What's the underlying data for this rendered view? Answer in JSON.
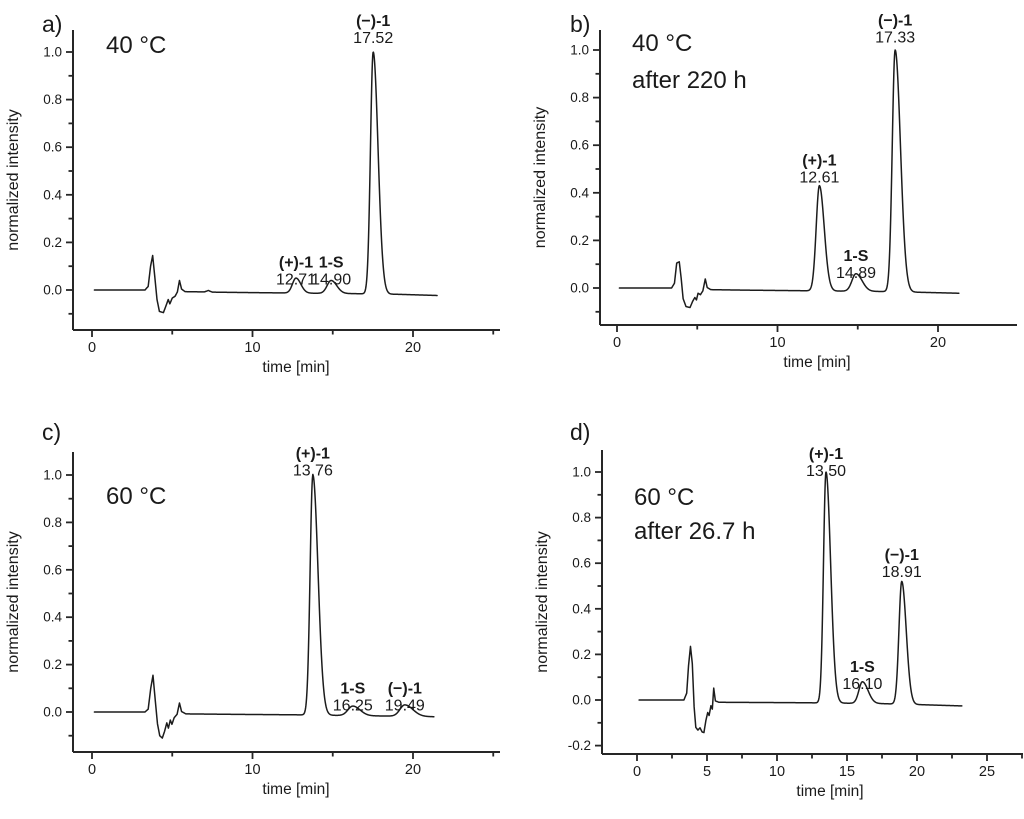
{
  "figure_title": "",
  "colors": {
    "background": "#ffffff",
    "trace": "#1c1c1c",
    "axis": "#262626",
    "text": "#1a1a1a"
  },
  "chart_data": {
    "type": "line",
    "layout": "2x2-grid",
    "description_visible_text_only": true,
    "panels": [
      {
        "panel_label": "a)",
        "condition_lines": [
          "40 °C"
        ],
        "xlabel": "time [min]",
        "ylabel": "normalized intensity",
        "xticks_major": [
          0,
          10,
          20
        ],
        "xticks_minor": [
          5,
          15,
          25
        ],
        "yticks_major": [
          1.0,
          0.8,
          0.6,
          0.4,
          0.2,
          0.0
        ],
        "yticks_minor": [
          0.9,
          0.7,
          0.5,
          0.3,
          0.1,
          -0.1
        ],
        "peaks": [
          {
            "name": "(+)-1",
            "rt_label": "12.71",
            "retention_time_min": 12.71,
            "normalized_intensity": 0.05,
            "sigma_left": 0.22,
            "sigma_right": 0.3,
            "label_v": 0.115
          },
          {
            "name": "1-S",
            "rt_label": "14.90",
            "retention_time_min": 14.9,
            "normalized_intensity": 0.04,
            "sigma_left": 0.25,
            "sigma_right": 0.35,
            "label_v": 0.115
          },
          {
            "name": "(−)-1",
            "rt_label": "17.52",
            "retention_time_min": 17.52,
            "normalized_intensity": 1.0,
            "sigma_left": 0.17,
            "sigma_right": 0.3,
            "label_v": 1.13
          }
        ],
        "baseline_anchors": [
          [
            0.15,
            0
          ],
          [
            3.3,
            0
          ],
          [
            3.5,
            0.015
          ],
          [
            3.65,
            0.1
          ],
          [
            3.78,
            0.145
          ],
          [
            3.92,
            0.05
          ],
          [
            4.05,
            -0.04
          ],
          [
            4.2,
            -0.09
          ],
          [
            4.45,
            -0.095
          ],
          [
            4.6,
            -0.068
          ],
          [
            4.75,
            -0.04
          ],
          [
            4.85,
            -0.058
          ],
          [
            5.0,
            -0.034
          ],
          [
            5.18,
            -0.026
          ],
          [
            5.32,
            -0.008
          ],
          [
            5.45,
            0.04
          ],
          [
            5.58,
            0.004
          ],
          [
            5.8,
            -0.007
          ],
          [
            7.0,
            -0.008
          ],
          [
            7.25,
            -0.002
          ],
          [
            7.5,
            -0.009
          ],
          [
            10,
            -0.011
          ],
          [
            13,
            -0.013
          ],
          [
            16,
            -0.015
          ],
          [
            19,
            -0.018
          ],
          [
            21.5,
            -0.023
          ]
        ],
        "trace_range_min": [
          0.15,
          21.5
        ]
      },
      {
        "panel_label": "b)",
        "condition_lines": [
          "40 °C",
          "after 220 h"
        ],
        "xlabel": "time [min]",
        "ylabel": "normalized intensity",
        "xticks_major": [
          0,
          10,
          20
        ],
        "xticks_minor": [
          5,
          15,
          25
        ],
        "yticks_major": [
          1.0,
          0.8,
          0.6,
          0.4,
          0.2,
          0.0
        ],
        "yticks_minor": [
          0.9,
          0.7,
          0.5,
          0.3,
          0.1,
          -0.1
        ],
        "peaks": [
          {
            "name": "(+)-1",
            "rt_label": "12.61",
            "retention_time_min": 12.61,
            "normalized_intensity": 0.43,
            "sigma_left": 0.2,
            "sigma_right": 0.3,
            "label_v": 0.535
          },
          {
            "name": "1-S",
            "rt_label": "14.89",
            "retention_time_min": 14.89,
            "normalized_intensity": 0.06,
            "sigma_left": 0.25,
            "sigma_right": 0.38,
            "label_v": 0.135
          },
          {
            "name": "(−)-1",
            "rt_label": "17.33",
            "retention_time_min": 17.33,
            "normalized_intensity": 1.0,
            "sigma_left": 0.18,
            "sigma_right": 0.33,
            "label_v": 1.125
          }
        ],
        "baseline_anchors": [
          [
            0.15,
            0
          ],
          [
            3.4,
            0
          ],
          [
            3.58,
            0.02
          ],
          [
            3.72,
            0.105
          ],
          [
            3.88,
            0.11
          ],
          [
            4.0,
            0.04
          ],
          [
            4.12,
            -0.045
          ],
          [
            4.3,
            -0.078
          ],
          [
            4.55,
            -0.082
          ],
          [
            4.72,
            -0.055
          ],
          [
            4.85,
            -0.04
          ],
          [
            4.95,
            -0.05
          ],
          [
            5.05,
            -0.022
          ],
          [
            5.2,
            -0.028
          ],
          [
            5.35,
            -0.012
          ],
          [
            5.5,
            0.038
          ],
          [
            5.62,
            0.002
          ],
          [
            5.85,
            -0.007
          ],
          [
            8,
            -0.009
          ],
          [
            11,
            -0.011
          ],
          [
            14,
            -0.013
          ],
          [
            17,
            -0.015
          ],
          [
            21.3,
            -0.022
          ]
        ],
        "trace_range_min": [
          0.15,
          21.3
        ]
      },
      {
        "panel_label": "c)",
        "condition_lines": [
          "60 °C"
        ],
        "xlabel": "time [min]",
        "ylabel": "normalized intensity",
        "xticks_major": [
          0,
          10,
          20
        ],
        "xticks_minor": [
          5,
          15,
          25
        ],
        "yticks_major": [
          1.0,
          0.8,
          0.6,
          0.4,
          0.2,
          0.0
        ],
        "yticks_minor": [
          0.9,
          0.7,
          0.5,
          0.3,
          0.1,
          -0.1
        ],
        "peaks": [
          {
            "name": "(+)-1",
            "rt_label": "13.76",
            "retention_time_min": 13.76,
            "normalized_intensity": 1.0,
            "sigma_left": 0.17,
            "sigma_right": 0.32,
            "label_v": 1.09
          },
          {
            "name": "1-S",
            "rt_label": "16.25",
            "retention_time_min": 16.25,
            "normalized_intensity": 0.025,
            "sigma_left": 0.3,
            "sigma_right": 0.45,
            "label_v": 0.1
          },
          {
            "name": "(−)-1",
            "rt_label": "19.49",
            "retention_time_min": 19.49,
            "normalized_intensity": 0.03,
            "sigma_left": 0.3,
            "sigma_right": 0.5,
            "label_v": 0.1
          }
        ],
        "baseline_anchors": [
          [
            0.15,
            0
          ],
          [
            3.3,
            0
          ],
          [
            3.5,
            0.012
          ],
          [
            3.66,
            0.1
          ],
          [
            3.8,
            0.155
          ],
          [
            3.94,
            0.05
          ],
          [
            4.08,
            -0.05
          ],
          [
            4.22,
            -0.1
          ],
          [
            4.38,
            -0.11
          ],
          [
            4.52,
            -0.082
          ],
          [
            4.66,
            -0.046
          ],
          [
            4.76,
            -0.068
          ],
          [
            4.88,
            -0.034
          ],
          [
            4.98,
            -0.052
          ],
          [
            5.12,
            -0.024
          ],
          [
            5.3,
            -0.01
          ],
          [
            5.45,
            0.038
          ],
          [
            5.58,
            0.002
          ],
          [
            5.85,
            -0.008
          ],
          [
            9,
            -0.01
          ],
          [
            13,
            -0.012
          ],
          [
            17,
            -0.016
          ],
          [
            19.8,
            -0.018
          ],
          [
            21.3,
            -0.02
          ]
        ],
        "trace_range_min": [
          0.15,
          21.3
        ]
      },
      {
        "panel_label": "d)",
        "condition_lines": [
          "60 °C",
          "after 26.7 h"
        ],
        "xlabel": "time [min]",
        "ylabel": "normalized intensity",
        "xticks_major": [
          0,
          5,
          10,
          15,
          20,
          25
        ],
        "xticks_minor": [
          2.5,
          7.5,
          12.5,
          17.5,
          22.5,
          27.5
        ],
        "yticks_major": [
          1.0,
          0.8,
          0.6,
          0.4,
          0.2,
          0.0,
          -0.2
        ],
        "yticks_minor": [
          0.9,
          0.7,
          0.5,
          0.3,
          0.1,
          -0.1
        ],
        "peaks": [
          {
            "name": "(+)-1",
            "rt_label": "13.50",
            "retention_time_min": 13.5,
            "normalized_intensity": 1.0,
            "sigma_left": 0.18,
            "sigma_right": 0.33,
            "label_v": 1.08
          },
          {
            "name": "1-S",
            "rt_label": "16.10",
            "retention_time_min": 16.1,
            "normalized_intensity": 0.08,
            "sigma_left": 0.25,
            "sigma_right": 0.4,
            "label_v": 0.145
          },
          {
            "name": "(−)-1",
            "rt_label": "18.91",
            "retention_time_min": 18.91,
            "normalized_intensity": 0.52,
            "sigma_left": 0.2,
            "sigma_right": 0.32,
            "label_v": 0.635
          }
        ],
        "baseline_anchors": [
          [
            0.15,
            0
          ],
          [
            3.35,
            0
          ],
          [
            3.55,
            0.03
          ],
          [
            3.68,
            0.15
          ],
          [
            3.82,
            0.235
          ],
          [
            3.95,
            0.16
          ],
          [
            4.08,
            -0.03
          ],
          [
            4.2,
            -0.12
          ],
          [
            4.35,
            -0.132
          ],
          [
            4.5,
            -0.122
          ],
          [
            4.65,
            -0.14
          ],
          [
            4.78,
            -0.143
          ],
          [
            4.92,
            -0.09
          ],
          [
            5.05,
            -0.055
          ],
          [
            5.15,
            -0.068
          ],
          [
            5.28,
            -0.025
          ],
          [
            5.38,
            -0.04
          ],
          [
            5.48,
            0.052
          ],
          [
            5.6,
            -0.004
          ],
          [
            5.85,
            -0.01
          ],
          [
            9,
            -0.011
          ],
          [
            12,
            -0.012
          ],
          [
            15,
            -0.014
          ],
          [
            17.5,
            -0.016
          ],
          [
            20,
            -0.02
          ],
          [
            23.2,
            -0.026
          ]
        ],
        "trace_range_min": [
          0.15,
          23.2
        ]
      }
    ]
  }
}
